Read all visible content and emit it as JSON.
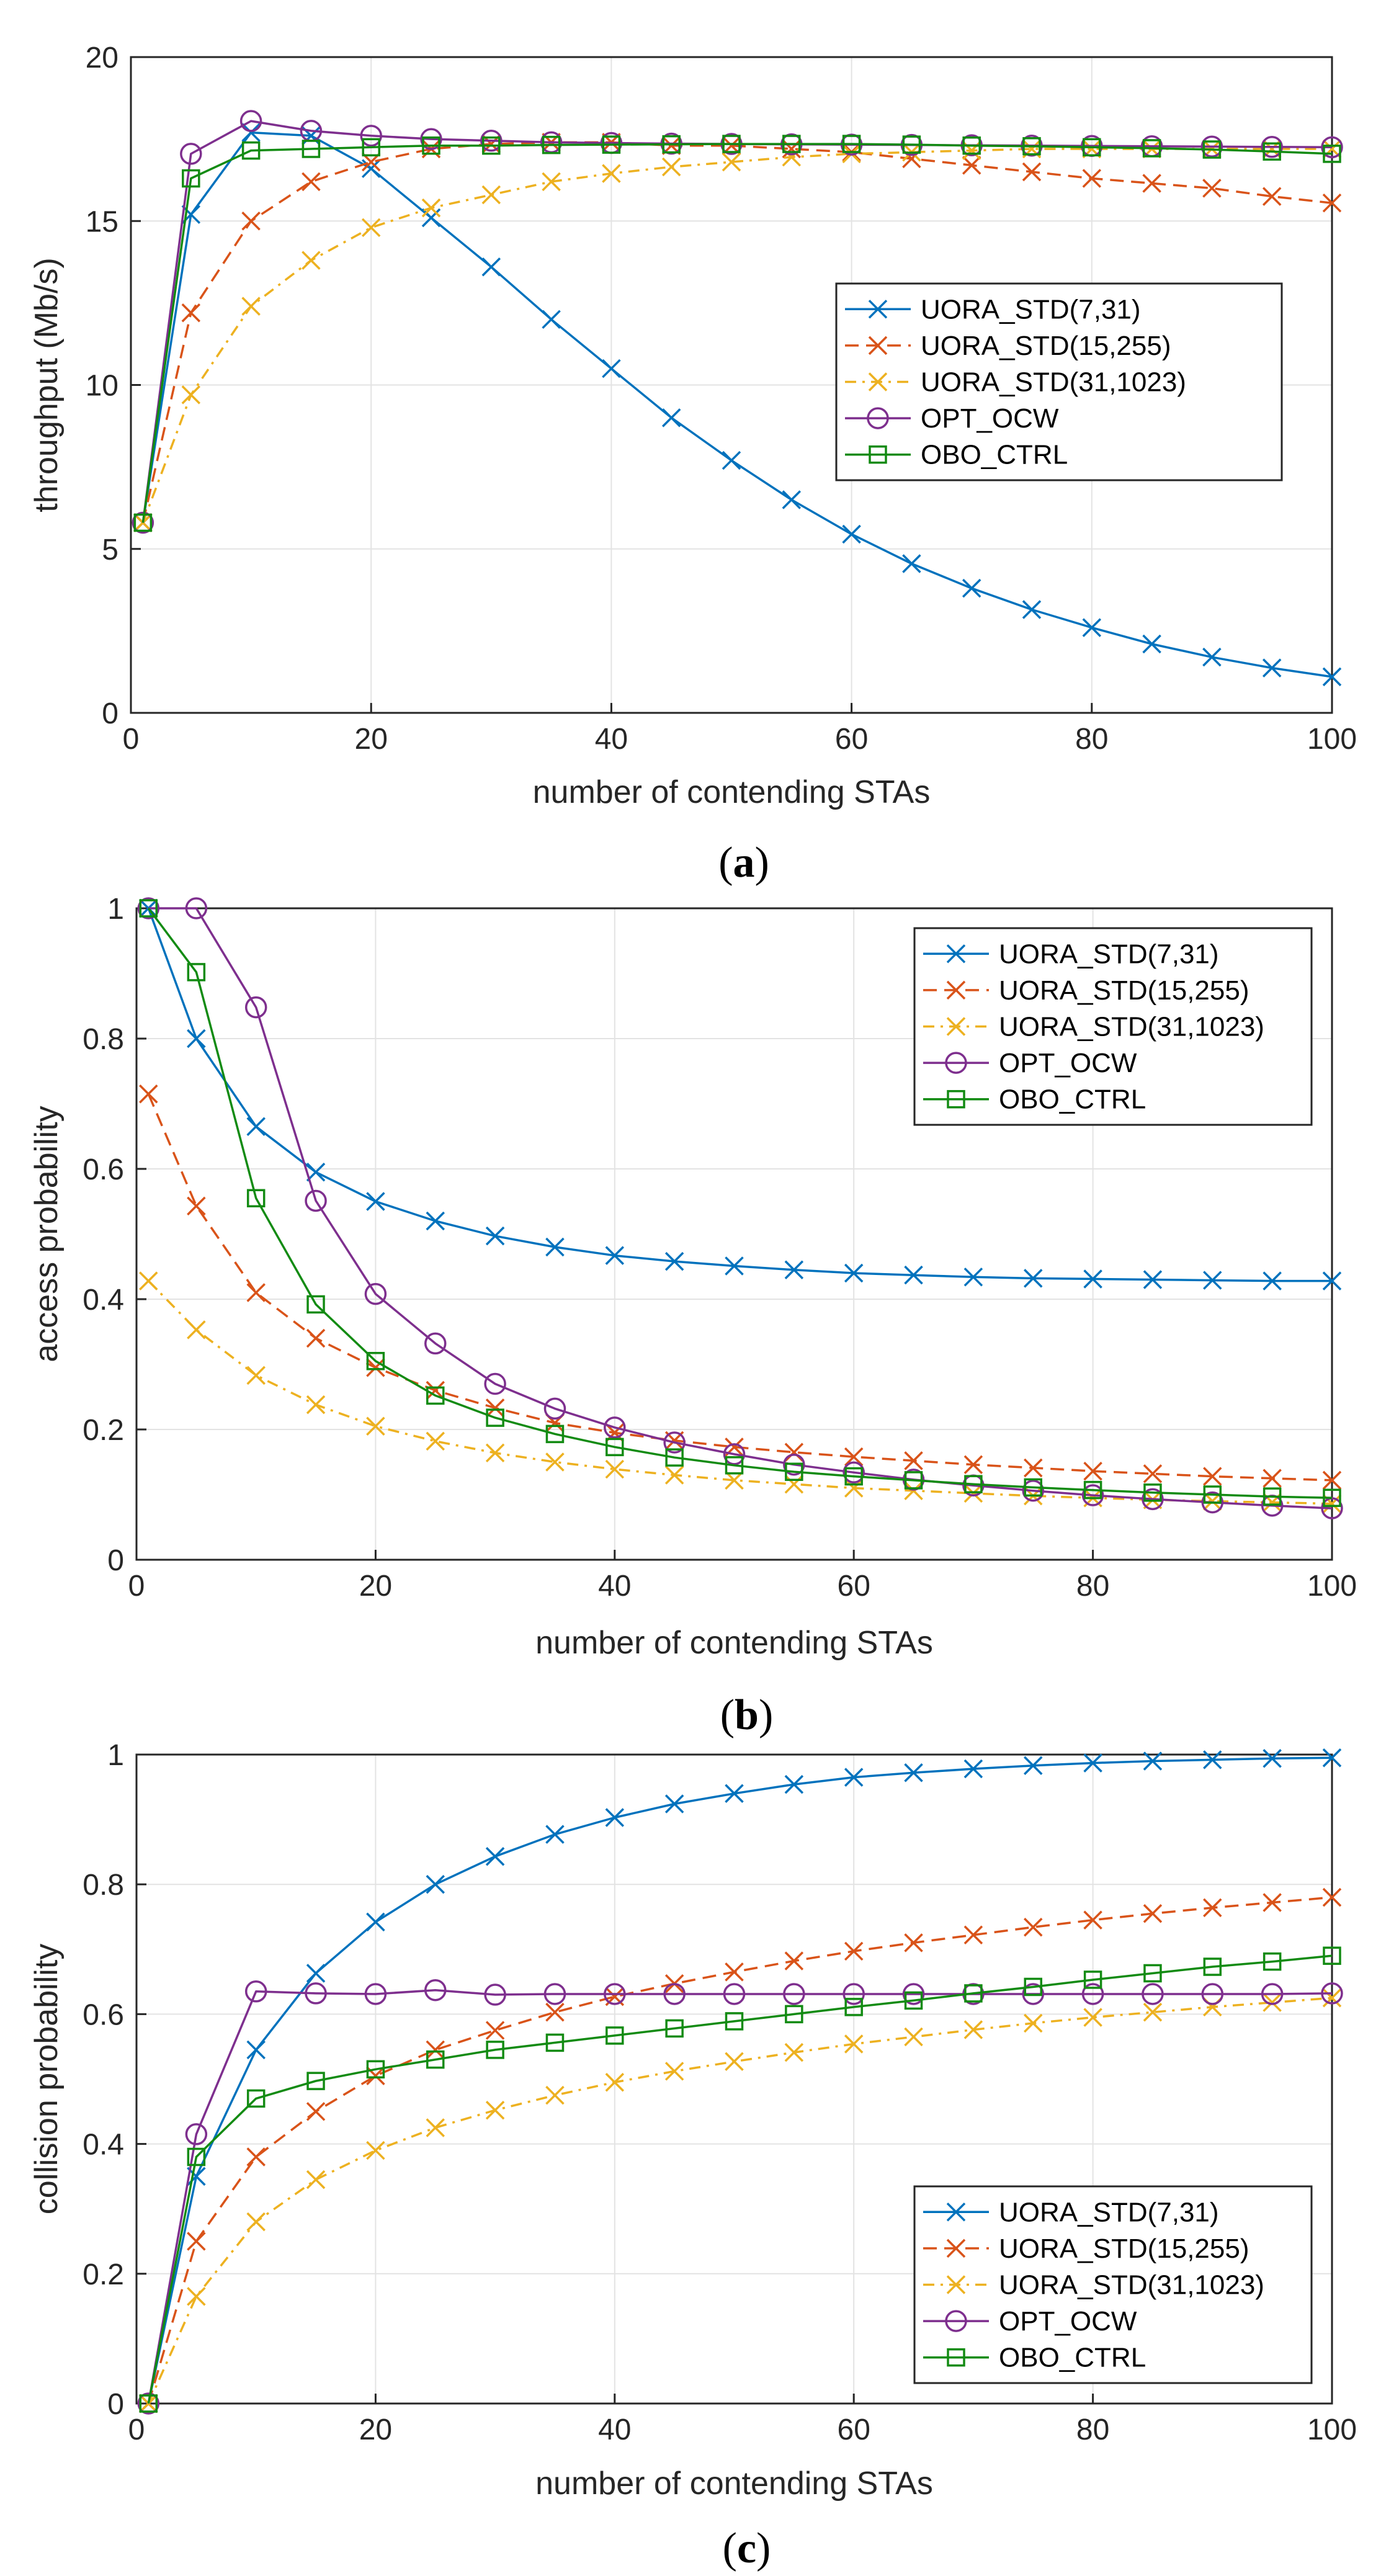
{
  "chart_data": [
    {
      "type": "line",
      "panel": "a",
      "caption_letter": "a",
      "xlabel": "number of contending STAs",
      "ylabel": "throughput (Mb/s)",
      "xlim": [
        0,
        100
      ],
      "ylim": [
        0,
        20
      ],
      "xticks": [
        0,
        20,
        40,
        60,
        80,
        100
      ],
      "yticks": [
        0,
        5,
        10,
        15,
        20
      ],
      "grid": true,
      "legend_position": "middle-right",
      "x": [
        1,
        5,
        10,
        15,
        20,
        25,
        30,
        35,
        40,
        45,
        50,
        55,
        60,
        65,
        70,
        75,
        80,
        85,
        90,
        95,
        100
      ],
      "series": [
        {
          "name": "UORA_STD(7,31)",
          "marker": "x",
          "dash": "solid",
          "color": "#0072BD",
          "values": [
            5.8,
            15.2,
            17.7,
            17.6,
            16.6,
            15.1,
            13.6,
            12.0,
            10.5,
            9.0,
            7.7,
            6.5,
            5.45,
            4.55,
            3.8,
            3.15,
            2.6,
            2.1,
            1.7,
            1.37,
            1.1
          ]
        },
        {
          "name": "UORA_STD(15,255)",
          "marker": "x",
          "dash": "dashed",
          "color": "#D95319",
          "values": [
            5.8,
            12.2,
            15.0,
            16.2,
            16.8,
            17.2,
            17.35,
            17.4,
            17.4,
            17.3,
            17.3,
            17.2,
            17.1,
            16.9,
            16.7,
            16.5,
            16.3,
            16.15,
            16.0,
            15.75,
            15.55
          ]
        },
        {
          "name": "UORA_STD(31,1023)",
          "marker": "x",
          "dash": "dashdot",
          "color": "#EDB120",
          "values": [
            5.8,
            9.7,
            12.4,
            13.8,
            14.8,
            15.4,
            15.8,
            16.2,
            16.45,
            16.65,
            16.8,
            16.95,
            17.05,
            17.1,
            17.15,
            17.2,
            17.2,
            17.2,
            17.2,
            17.2,
            17.2
          ]
        },
        {
          "name": "OPT_OCW",
          "marker": "circle",
          "dash": "solid",
          "color": "#7E2F8E",
          "values": [
            5.8,
            17.05,
            18.05,
            17.75,
            17.6,
            17.5,
            17.45,
            17.4,
            17.38,
            17.36,
            17.35,
            17.34,
            17.33,
            17.32,
            17.31,
            17.3,
            17.29,
            17.28,
            17.27,
            17.26,
            17.25
          ]
        },
        {
          "name": "OBO_CTRL",
          "marker": "square",
          "dash": "solid",
          "color": "#138B13",
          "values": [
            5.8,
            16.3,
            17.15,
            17.2,
            17.25,
            17.3,
            17.3,
            17.32,
            17.33,
            17.34,
            17.35,
            17.35,
            17.35,
            17.33,
            17.3,
            17.28,
            17.25,
            17.22,
            17.18,
            17.12,
            17.05
          ]
        }
      ]
    },
    {
      "type": "line",
      "panel": "b",
      "caption_letter": "b",
      "xlabel": "number of contending STAs",
      "ylabel": "access probability",
      "xlim": [
        0,
        100
      ],
      "ylim": [
        0,
        1
      ],
      "xticks": [
        0,
        20,
        40,
        60,
        80,
        100
      ],
      "yticks": [
        0,
        0.2,
        0.4,
        0.6,
        0.8,
        1
      ],
      "grid": true,
      "legend_position": "top-right",
      "x": [
        1,
        5,
        10,
        15,
        20,
        25,
        30,
        35,
        40,
        45,
        50,
        55,
        60,
        65,
        70,
        75,
        80,
        85,
        90,
        95,
        100
      ],
      "series": [
        {
          "name": "UORA_STD(7,31)",
          "marker": "x",
          "dash": "solid",
          "color": "#0072BD",
          "values": [
            1.0,
            0.8,
            0.665,
            0.595,
            0.55,
            0.52,
            0.497,
            0.48,
            0.467,
            0.458,
            0.451,
            0.445,
            0.44,
            0.437,
            0.434,
            0.432,
            0.431,
            0.43,
            0.429,
            0.428,
            0.428
          ]
        },
        {
          "name": "UORA_STD(15,255)",
          "marker": "x",
          "dash": "dashed",
          "color": "#D95319",
          "values": [
            0.715,
            0.543,
            0.41,
            0.34,
            0.295,
            0.26,
            0.233,
            0.21,
            0.195,
            0.183,
            0.173,
            0.165,
            0.158,
            0.152,
            0.146,
            0.141,
            0.136,
            0.132,
            0.128,
            0.125,
            0.122
          ]
        },
        {
          "name": "UORA_STD(31,1023)",
          "marker": "x",
          "dash": "dashdot",
          "color": "#EDB120",
          "values": [
            0.428,
            0.353,
            0.283,
            0.238,
            0.205,
            0.182,
            0.164,
            0.15,
            0.139,
            0.13,
            0.122,
            0.116,
            0.11,
            0.106,
            0.102,
            0.098,
            0.095,
            0.092,
            0.09,
            0.088,
            0.086
          ]
        },
        {
          "name": "OPT_OCW",
          "marker": "circle",
          "dash": "solid",
          "color": "#7E2F8E",
          "values": [
            1.0,
            1.0,
            0.848,
            0.551,
            0.408,
            0.332,
            0.27,
            0.232,
            0.203,
            0.18,
            0.162,
            0.146,
            0.134,
            0.123,
            0.114,
            0.106,
            0.099,
            0.093,
            0.088,
            0.083,
            0.079
          ]
        },
        {
          "name": "OBO_CTRL",
          "marker": "square",
          "dash": "solid",
          "color": "#138B13",
          "values": [
            1.0,
            0.902,
            0.555,
            0.392,
            0.305,
            0.252,
            0.218,
            0.193,
            0.173,
            0.157,
            0.145,
            0.135,
            0.128,
            0.122,
            0.116,
            0.111,
            0.107,
            0.103,
            0.1,
            0.097,
            0.095
          ]
        }
      ]
    },
    {
      "type": "line",
      "panel": "c",
      "caption_letter": "c",
      "xlabel": "number of contending STAs",
      "ylabel": "collision probability",
      "xlim": [
        0,
        100
      ],
      "ylim": [
        0,
        1
      ],
      "xticks": [
        0,
        20,
        40,
        60,
        80,
        100
      ],
      "yticks": [
        0,
        0.2,
        0.4,
        0.6,
        0.8,
        1
      ],
      "grid": true,
      "legend_position": "bottom-right",
      "x": [
        1,
        5,
        10,
        15,
        20,
        25,
        30,
        35,
        40,
        45,
        50,
        55,
        60,
        65,
        70,
        75,
        80,
        85,
        90,
        95,
        100
      ],
      "series": [
        {
          "name": "UORA_STD(7,31)",
          "marker": "x",
          "dash": "solid",
          "color": "#0072BD",
          "values": [
            0.0,
            0.35,
            0.545,
            0.663,
            0.742,
            0.8,
            0.843,
            0.877,
            0.903,
            0.924,
            0.94,
            0.954,
            0.965,
            0.972,
            0.978,
            0.983,
            0.987,
            0.99,
            0.992,
            0.994,
            0.995
          ]
        },
        {
          "name": "UORA_STD(15,255)",
          "marker": "x",
          "dash": "dashed",
          "color": "#D95319",
          "values": [
            0.0,
            0.25,
            0.38,
            0.45,
            0.505,
            0.545,
            0.575,
            0.603,
            0.627,
            0.647,
            0.665,
            0.682,
            0.697,
            0.71,
            0.722,
            0.734,
            0.745,
            0.755,
            0.764,
            0.772,
            0.78
          ]
        },
        {
          "name": "UORA_STD(31,1023)",
          "marker": "x",
          "dash": "dashdot",
          "color": "#EDB120",
          "values": [
            0.0,
            0.165,
            0.28,
            0.345,
            0.39,
            0.425,
            0.452,
            0.475,
            0.495,
            0.512,
            0.527,
            0.541,
            0.554,
            0.565,
            0.576,
            0.586,
            0.595,
            0.603,
            0.611,
            0.618,
            0.625
          ]
        },
        {
          "name": "OPT_OCW",
          "marker": "circle",
          "dash": "solid",
          "color": "#7E2F8E",
          "values": [
            0.0,
            0.415,
            0.635,
            0.632,
            0.631,
            0.637,
            0.63,
            0.631,
            0.631,
            0.631,
            0.631,
            0.631,
            0.631,
            0.631,
            0.631,
            0.631,
            0.631,
            0.631,
            0.631,
            0.631,
            0.632
          ]
        },
        {
          "name": "OBO_CTRL",
          "marker": "square",
          "dash": "solid",
          "color": "#138B13",
          "values": [
            0.0,
            0.38,
            0.47,
            0.497,
            0.515,
            0.53,
            0.545,
            0.556,
            0.567,
            0.578,
            0.589,
            0.6,
            0.611,
            0.621,
            0.632,
            0.642,
            0.653,
            0.663,
            0.673,
            0.681,
            0.69
          ]
        }
      ]
    }
  ]
}
